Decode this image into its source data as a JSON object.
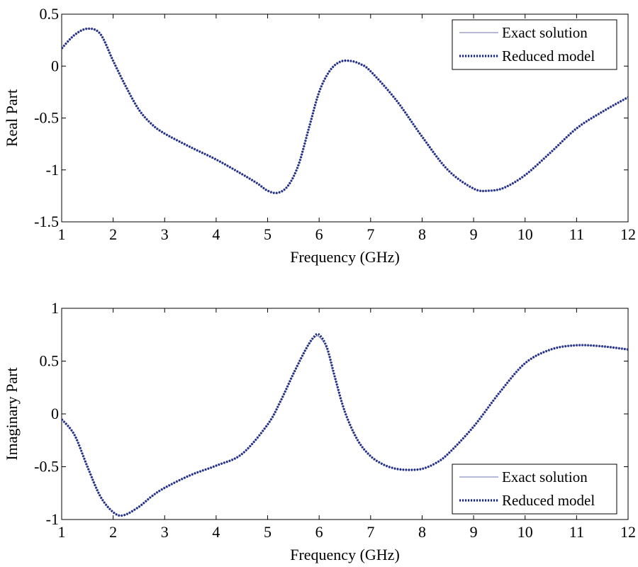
{
  "chart_data": [
    {
      "type": "line",
      "xlabel": "Frequency (GHz)",
      "ylabel": "Real Part",
      "xlim": [
        1,
        12
      ],
      "ylim": [
        -1.5,
        0.5
      ],
      "xticks": [
        "1",
        "2",
        "3",
        "4",
        "5",
        "6",
        "7",
        "8",
        "9",
        "10",
        "11",
        "12"
      ],
      "yticks": [
        "0.5",
        "0",
        "-0.5",
        "-1",
        "-1.5"
      ],
      "grid": false,
      "legend_position": "top-right",
      "series": [
        {
          "name": "Exact solution",
          "color": "#8a8fc2",
          "style": "solid",
          "x": [
            1,
            1.25,
            1.5,
            1.75,
            2,
            2.25,
            2.5,
            2.75,
            3,
            3.5,
            4,
            4.5,
            4.8,
            5,
            5.2,
            5.4,
            5.6,
            5.8,
            6,
            6.2,
            6.4,
            6.6,
            6.8,
            7,
            7.5,
            8,
            8.5,
            9,
            9.3,
            9.6,
            10,
            10.5,
            11,
            11.5,
            12
          ],
          "y": [
            0.17,
            0.3,
            0.36,
            0.31,
            0.05,
            -0.2,
            -0.42,
            -0.56,
            -0.65,
            -0.78,
            -0.9,
            -1.04,
            -1.13,
            -1.2,
            -1.22,
            -1.15,
            -0.95,
            -0.6,
            -0.25,
            -0.05,
            0.04,
            0.05,
            0.02,
            -0.05,
            -0.33,
            -0.68,
            -1.0,
            -1.18,
            -1.2,
            -1.17,
            -1.05,
            -0.83,
            -0.6,
            -0.44,
            -0.3
          ]
        },
        {
          "name": "Reduced model",
          "color": "#1c2a80",
          "style": "dotted",
          "x": [
            1,
            1.25,
            1.5,
            1.75,
            2,
            2.25,
            2.5,
            2.75,
            3,
            3.5,
            4,
            4.5,
            4.8,
            5,
            5.2,
            5.4,
            5.6,
            5.8,
            6,
            6.2,
            6.4,
            6.6,
            6.8,
            7,
            7.5,
            8,
            8.5,
            9,
            9.3,
            9.6,
            10,
            10.5,
            11,
            11.5,
            12
          ],
          "y": [
            0.17,
            0.3,
            0.36,
            0.31,
            0.05,
            -0.2,
            -0.42,
            -0.56,
            -0.65,
            -0.78,
            -0.9,
            -1.04,
            -1.13,
            -1.2,
            -1.22,
            -1.15,
            -0.95,
            -0.6,
            -0.25,
            -0.05,
            0.04,
            0.05,
            0.02,
            -0.05,
            -0.33,
            -0.68,
            -1.0,
            -1.18,
            -1.2,
            -1.17,
            -1.05,
            -0.83,
            -0.6,
            -0.44,
            -0.3
          ]
        }
      ]
    },
    {
      "type": "line",
      "xlabel": "Frequency (GHz)",
      "ylabel": "Imaginary Part",
      "xlim": [
        1,
        12
      ],
      "ylim": [
        -1,
        1
      ],
      "xticks": [
        "1",
        "2",
        "3",
        "4",
        "5",
        "6",
        "7",
        "8",
        "9",
        "10",
        "11",
        "12"
      ],
      "yticks": [
        "1",
        "0.5",
        "0",
        "-0.5",
        "-1"
      ],
      "grid": false,
      "legend_position": "bottom-right",
      "series": [
        {
          "name": "Exact solution",
          "color": "#8a8fc2",
          "style": "solid",
          "x": [
            1,
            1.25,
            1.5,
            1.75,
            2,
            2.2,
            2.5,
            2.75,
            3,
            3.5,
            4,
            4.5,
            5,
            5.25,
            5.5,
            5.75,
            5.9,
            6,
            6.15,
            6.3,
            6.5,
            6.75,
            7,
            7.25,
            7.5,
            7.75,
            8,
            8.25,
            8.5,
            9,
            9.5,
            10,
            10.5,
            11,
            11.5,
            12
          ],
          "y": [
            -0.05,
            -0.2,
            -0.5,
            -0.78,
            -0.93,
            -0.96,
            -0.88,
            -0.78,
            -0.7,
            -0.58,
            -0.49,
            -0.38,
            -0.1,
            0.12,
            0.38,
            0.62,
            0.72,
            0.73,
            0.62,
            0.35,
            0.02,
            -0.25,
            -0.4,
            -0.48,
            -0.52,
            -0.53,
            -0.52,
            -0.47,
            -0.38,
            -0.12,
            0.2,
            0.48,
            0.61,
            0.65,
            0.64,
            0.61
          ]
        },
        {
          "name": "Reduced model",
          "color": "#1c2a80",
          "style": "dotted",
          "x": [
            1,
            1.25,
            1.5,
            1.75,
            2,
            2.2,
            2.5,
            2.75,
            3,
            3.5,
            4,
            4.5,
            5,
            5.25,
            5.5,
            5.75,
            5.9,
            6,
            6.15,
            6.3,
            6.5,
            6.75,
            7,
            7.25,
            7.5,
            7.75,
            8,
            8.25,
            8.5,
            9,
            9.5,
            10,
            10.5,
            11,
            11.5,
            12
          ],
          "y": [
            -0.05,
            -0.2,
            -0.5,
            -0.78,
            -0.93,
            -0.96,
            -0.88,
            -0.78,
            -0.7,
            -0.58,
            -0.49,
            -0.38,
            -0.1,
            0.12,
            0.38,
            0.62,
            0.73,
            0.75,
            0.63,
            0.36,
            0.02,
            -0.25,
            -0.4,
            -0.48,
            -0.52,
            -0.53,
            -0.52,
            -0.47,
            -0.38,
            -0.12,
            0.2,
            0.48,
            0.61,
            0.65,
            0.64,
            0.61
          ]
        }
      ]
    }
  ]
}
